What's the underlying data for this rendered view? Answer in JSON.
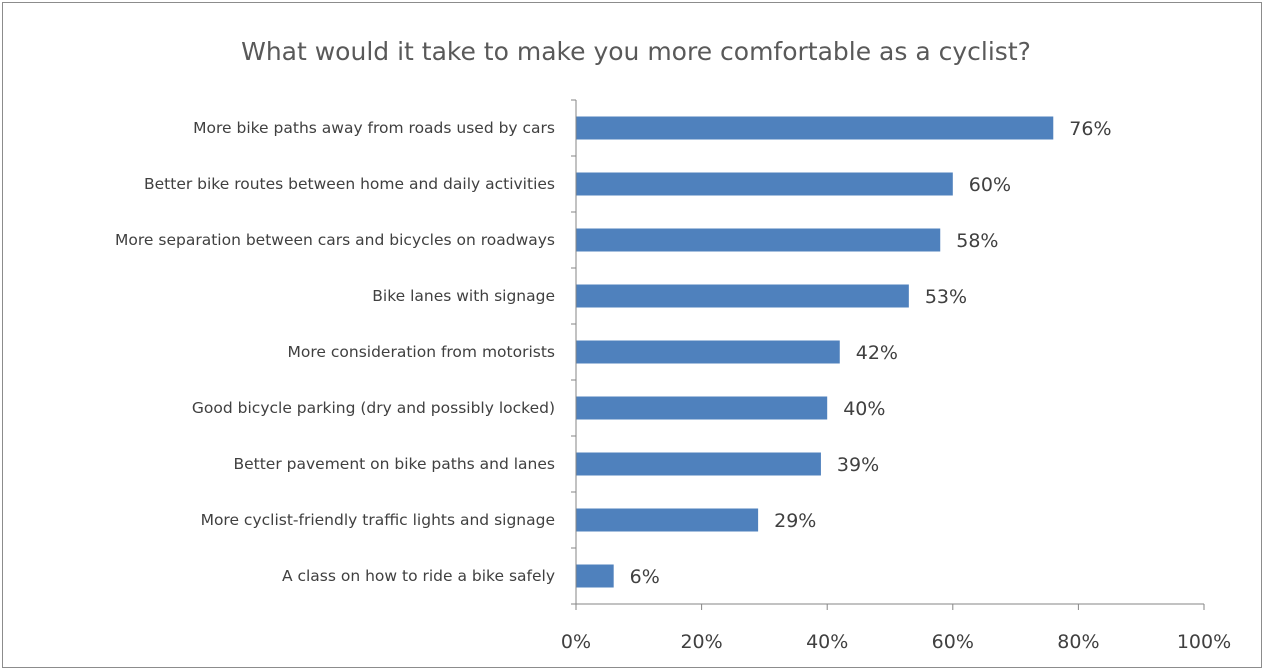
{
  "chart_data": {
    "type": "bar",
    "orientation": "horizontal",
    "title": "What would it take to make you more comfortable as a cyclist?",
    "xlabel": "",
    "ylabel": "",
    "categories": [
      "More bike paths away from roads used by cars",
      "Better bike routes between home and daily activities",
      "More separation between cars and bicycles on roadways",
      "Bike lanes with signage",
      "More consideration from motorists",
      "Good bicycle parking (dry and possibly locked)",
      "Better pavement on bike paths and lanes",
      "More cyclist-friendly traffic lights and signage",
      "A class on how to ride a bike safely"
    ],
    "values": [
      76,
      60,
      58,
      53,
      42,
      40,
      39,
      29,
      6
    ],
    "value_labels": [
      "76%",
      "60%",
      "58%",
      "53%",
      "42%",
      "40%",
      "39%",
      "29%",
      "6%"
    ],
    "xlim": [
      0,
      100
    ],
    "x_ticks": [
      "0%",
      "20%",
      "40%",
      "60%",
      "80%",
      "100%"
    ],
    "grid": false,
    "legend": "none",
    "bar_color": "#4f81bd",
    "axis_color": "#868686"
  }
}
